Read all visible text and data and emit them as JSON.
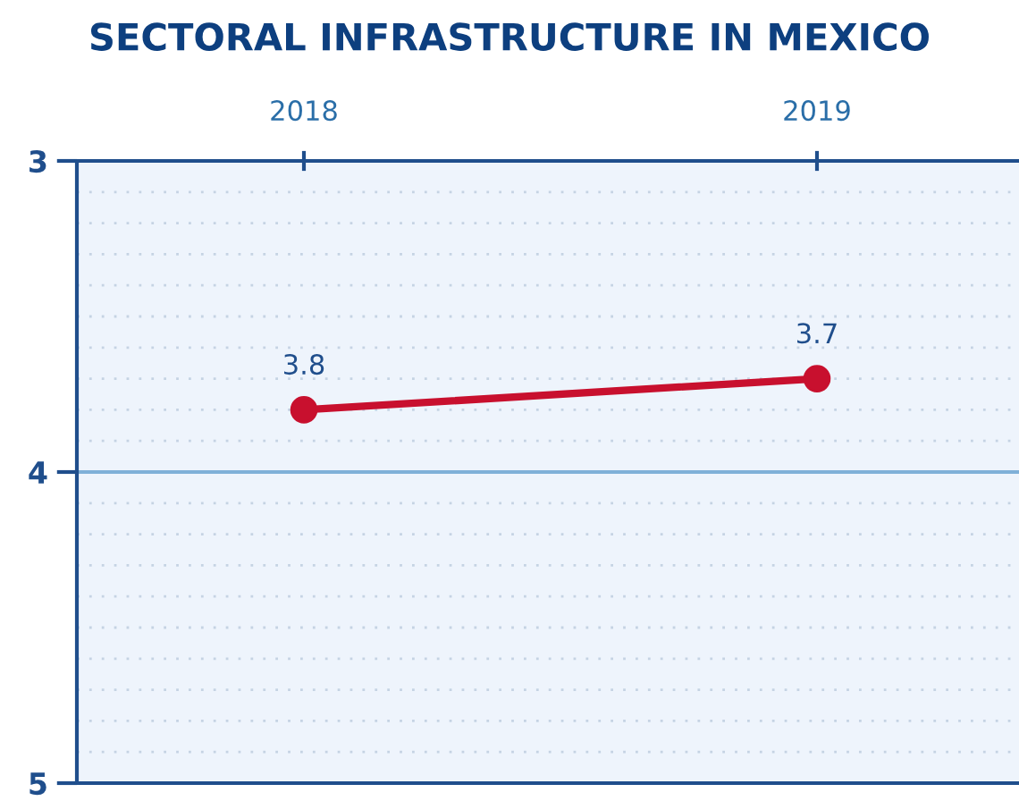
{
  "chart_data": {
    "type": "line",
    "title": "SECTORAL INFRASTRUCTURE IN MEXICO",
    "categories": [
      "2018",
      "2019"
    ],
    "series": [
      {
        "color": "#c8102e",
        "values": [
          3.8,
          3.7
        ]
      }
    ],
    "ref_lines": [
      {
        "axis": "y",
        "value": 4,
        "color": "#7fb0d8"
      }
    ],
    "ylim": [
      5,
      3
    ],
    "yticks": [
      3,
      4,
      5
    ],
    "grid": "y",
    "marker": "circle",
    "line_style": "solid",
    "data_labels": true
  }
}
